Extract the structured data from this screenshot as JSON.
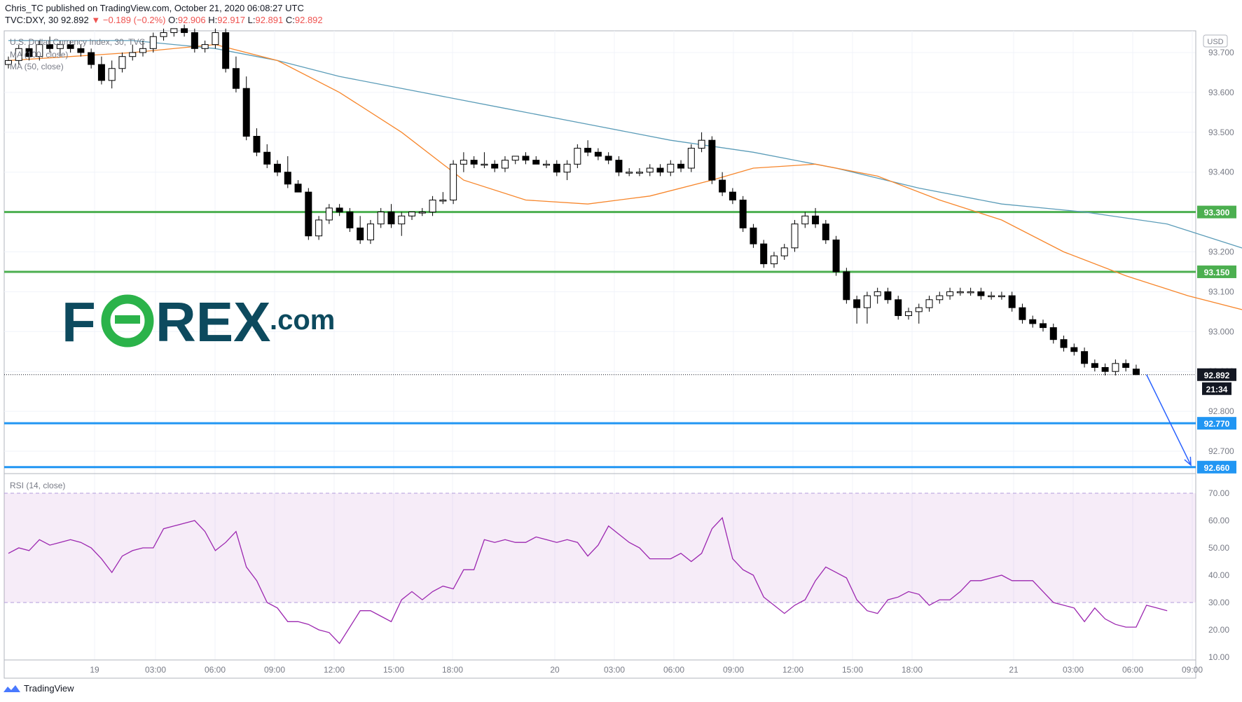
{
  "header": {
    "published_line": "Chris_TC published on TradingView.com, October 21, 2020 06:08:27 UTC",
    "symbol": "TVC:DXY, 30",
    "last": "92.892",
    "change": "−0.189 (−0.2%)",
    "o_label": "O:",
    "o_value": "92.906",
    "h_label": "H:",
    "h_value": "92.917",
    "l_label": "L:",
    "l_value": "92.891",
    "c_label": "C:",
    "c_value": "92.892"
  },
  "legend": {
    "series_title": "U.S. Dollar Currency Index, 30, TVC",
    "ma100": "MA (100, close)",
    "ma50": "MA (50, close)"
  },
  "watermark": {
    "text_left": "F",
    "text_right": "REX",
    "suffix": ".com",
    "brand_color": "#0d4a5e",
    "accent": "#2bb34a"
  },
  "footer": {
    "brand": "TradingView"
  },
  "chart_data": {
    "type": "candlestick",
    "currency_badge": "USD",
    "y_range": [
      92.62,
      93.75
    ],
    "price_ticks": [
      "93.700",
      "93.600",
      "93.500",
      "93.400",
      "93.300",
      "93.200",
      "93.100",
      "93.000",
      "92.900",
      "92.800",
      "92.700"
    ],
    "x_ticks": [
      "19",
      "03:00",
      "06:00",
      "09:00",
      "12:00",
      "15:00",
      "18:00",
      "20",
      "03:00",
      "06:00",
      "09:00",
      "12:00",
      "15:00",
      "18:00",
      "21",
      "03:00",
      "06:00",
      "09:00"
    ],
    "last_price": {
      "value": 92.892,
      "label": "92.892",
      "countdown": "21:34"
    },
    "levels": [
      {
        "value": 93.3,
        "label": "93.300",
        "color": "#4caf50"
      },
      {
        "value": 93.15,
        "label": "93.150",
        "color": "#4caf50"
      },
      {
        "value": 92.77,
        "label": "92.770",
        "color": "#2196f3"
      },
      {
        "value": 92.66,
        "label": "92.660",
        "color": "#2196f3"
      }
    ],
    "projection_arrow": {
      "from": [
        "Oct 21 06:00",
        92.892
      ],
      "to": [
        "Oct 21 09:00",
        92.665
      ],
      "color": "#2962ff"
    },
    "candles": [
      [
        93.67,
        93.69,
        93.66,
        93.68
      ],
      [
        93.68,
        93.72,
        93.67,
        93.71
      ],
      [
        93.71,
        93.72,
        93.68,
        93.69
      ],
      [
        93.69,
        93.73,
        93.68,
        93.72
      ],
      [
        93.72,
        93.74,
        93.7,
        93.71
      ],
      [
        93.71,
        93.73,
        93.69,
        93.72
      ],
      [
        93.72,
        93.73,
        93.7,
        93.71
      ],
      [
        93.71,
        93.72,
        93.69,
        93.7
      ],
      [
        93.7,
        93.71,
        93.66,
        93.67
      ],
      [
        93.67,
        93.69,
        93.62,
        93.63
      ],
      [
        93.63,
        93.68,
        93.61,
        93.66
      ],
      [
        93.66,
        93.7,
        93.65,
        93.69
      ],
      [
        93.69,
        93.72,
        93.68,
        93.7
      ],
      [
        93.7,
        93.73,
        93.69,
        93.71
      ],
      [
        93.71,
        93.75,
        93.7,
        93.74
      ],
      [
        93.74,
        93.76,
        93.73,
        93.75
      ],
      [
        93.75,
        93.76,
        93.74,
        93.76
      ],
      [
        93.76,
        93.77,
        93.74,
        93.75
      ],
      [
        93.75,
        93.76,
        93.7,
        93.71
      ],
      [
        93.71,
        93.73,
        93.7,
        93.72
      ],
      [
        93.72,
        93.76,
        93.71,
        93.75
      ],
      [
        93.75,
        93.76,
        93.65,
        93.66
      ],
      [
        93.66,
        93.69,
        93.6,
        93.61
      ],
      [
        93.61,
        93.64,
        93.48,
        93.49
      ],
      [
        93.49,
        93.51,
        93.44,
        93.45
      ],
      [
        93.45,
        93.47,
        93.41,
        93.42
      ],
      [
        93.42,
        93.43,
        93.39,
        93.4
      ],
      [
        93.4,
        93.44,
        93.36,
        93.37
      ],
      [
        93.37,
        93.38,
        93.35,
        93.35
      ],
      [
        93.35,
        93.36,
        93.23,
        93.24
      ],
      [
        93.24,
        93.29,
        93.23,
        93.28
      ],
      [
        93.28,
        93.32,
        93.27,
        93.31
      ],
      [
        93.31,
        93.32,
        93.29,
        93.3
      ],
      [
        93.3,
        93.31,
        93.25,
        93.26
      ],
      [
        93.26,
        93.29,
        93.22,
        93.23
      ],
      [
        93.23,
        93.28,
        93.22,
        93.27
      ],
      [
        93.27,
        93.31,
        93.26,
        93.3
      ],
      [
        93.3,
        93.32,
        93.26,
        93.27
      ],
      [
        93.27,
        93.3,
        93.24,
        93.29
      ],
      [
        93.29,
        93.3,
        93.28,
        93.3
      ],
      [
        93.3,
        93.31,
        93.29,
        93.3
      ],
      [
        93.3,
        93.34,
        93.29,
        93.33
      ],
      [
        93.33,
        93.35,
        93.32,
        93.33
      ],
      [
        93.33,
        93.43,
        93.32,
        93.42
      ],
      [
        93.42,
        93.45,
        93.4,
        93.43
      ],
      [
        93.43,
        93.44,
        93.41,
        93.42
      ],
      [
        93.42,
        93.45,
        93.41,
        93.42
      ],
      [
        93.42,
        93.43,
        93.4,
        93.41
      ],
      [
        93.41,
        93.44,
        93.4,
        93.43
      ],
      [
        93.43,
        93.44,
        93.42,
        93.44
      ],
      [
        93.44,
        93.45,
        93.42,
        93.43
      ],
      [
        93.43,
        93.44,
        93.42,
        93.42
      ],
      [
        93.42,
        93.43,
        93.41,
        93.42
      ],
      [
        93.42,
        93.43,
        93.39,
        93.4
      ],
      [
        93.4,
        93.43,
        93.38,
        93.42
      ],
      [
        93.42,
        93.47,
        93.41,
        93.46
      ],
      [
        93.46,
        93.48,
        93.44,
        93.45
      ],
      [
        93.45,
        93.46,
        93.43,
        93.44
      ],
      [
        93.44,
        93.45,
        93.42,
        93.43
      ],
      [
        93.43,
        93.44,
        93.39,
        93.4
      ],
      [
        93.4,
        93.41,
        93.39,
        93.4
      ],
      [
        93.4,
        93.41,
        93.39,
        93.4
      ],
      [
        93.4,
        93.42,
        93.39,
        93.41
      ],
      [
        93.41,
        93.42,
        93.39,
        93.4
      ],
      [
        93.4,
        93.43,
        93.39,
        93.42
      ],
      [
        93.42,
        93.43,
        93.4,
        93.41
      ],
      [
        93.41,
        93.47,
        93.4,
        93.46
      ],
      [
        93.46,
        93.5,
        93.45,
        93.48
      ],
      [
        93.48,
        93.49,
        93.37,
        93.38
      ],
      [
        93.38,
        93.4,
        93.34,
        93.35
      ],
      [
        93.35,
        93.36,
        93.32,
        93.33
      ],
      [
        93.33,
        93.34,
        93.25,
        93.26
      ],
      [
        93.26,
        93.27,
        93.21,
        93.22
      ],
      [
        93.22,
        93.23,
        93.16,
        93.17
      ],
      [
        93.17,
        93.2,
        93.16,
        93.19
      ],
      [
        93.19,
        93.22,
        93.18,
        93.21
      ],
      [
        93.21,
        93.28,
        93.2,
        93.27
      ],
      [
        93.27,
        93.3,
        93.26,
        93.29
      ],
      [
        93.29,
        93.31,
        93.26,
        93.27
      ],
      [
        93.27,
        93.28,
        93.22,
        93.23
      ],
      [
        93.23,
        93.24,
        93.14,
        93.15
      ],
      [
        93.15,
        93.16,
        93.07,
        93.08
      ],
      [
        93.08,
        93.09,
        93.02,
        93.06
      ],
      [
        93.06,
        93.1,
        93.02,
        93.09
      ],
      [
        93.09,
        93.11,
        93.07,
        93.1
      ],
      [
        93.1,
        93.11,
        93.07,
        93.08
      ],
      [
        93.08,
        93.09,
        93.03,
        93.04
      ],
      [
        93.04,
        93.06,
        93.03,
        93.05
      ],
      [
        93.05,
        93.07,
        93.02,
        93.06
      ],
      [
        93.06,
        93.09,
        93.05,
        93.08
      ],
      [
        93.08,
        93.1,
        93.07,
        93.09
      ],
      [
        93.09,
        93.11,
        93.08,
        93.1
      ],
      [
        93.1,
        93.11,
        93.09,
        93.1
      ],
      [
        93.1,
        93.11,
        93.09,
        93.1
      ],
      [
        93.1,
        93.11,
        93.08,
        93.09
      ],
      [
        93.09,
        93.1,
        93.08,
        93.09
      ],
      [
        93.09,
        93.1,
        93.08,
        93.09
      ],
      [
        93.09,
        93.1,
        93.05,
        93.06
      ],
      [
        93.06,
        93.07,
        93.02,
        93.03
      ],
      [
        93.03,
        93.04,
        93.01,
        93.02
      ],
      [
        93.02,
        93.03,
        93.0,
        93.01
      ],
      [
        93.01,
        93.02,
        92.97,
        92.98
      ],
      [
        92.98,
        92.99,
        92.95,
        92.96
      ],
      [
        92.96,
        92.97,
        92.94,
        92.95
      ],
      [
        92.95,
        92.96,
        92.91,
        92.92
      ],
      [
        92.92,
        92.93,
        92.9,
        92.91
      ],
      [
        92.91,
        92.92,
        92.89,
        92.9
      ],
      [
        92.9,
        92.93,
        92.89,
        92.92
      ],
      [
        92.92,
        92.93,
        92.9,
        92.91
      ],
      [
        92.906,
        92.917,
        92.891,
        92.892
      ]
    ],
    "ma50": [
      [
        0,
        93.68
      ],
      [
        12,
        93.7
      ],
      [
        20,
        93.72
      ],
      [
        26,
        93.68
      ],
      [
        32,
        93.6
      ],
      [
        38,
        93.5
      ],
      [
        44,
        93.38
      ],
      [
        50,
        93.33
      ],
      [
        56,
        93.32
      ],
      [
        62,
        93.34
      ],
      [
        68,
        93.38
      ],
      [
        72,
        93.41
      ],
      [
        78,
        93.42
      ],
      [
        84,
        93.39
      ],
      [
        90,
        93.33
      ],
      [
        96,
        93.28
      ],
      [
        102,
        93.2
      ],
      [
        108,
        93.14
      ],
      [
        114,
        93.09
      ],
      [
        120,
        93.05
      ],
      [
        126,
        93.02
      ],
      [
        130,
        92.99
      ]
    ],
    "ma100": [
      [
        0,
        93.73
      ],
      [
        12,
        93.73
      ],
      [
        20,
        93.71
      ],
      [
        26,
        93.68
      ],
      [
        32,
        93.64
      ],
      [
        40,
        93.6
      ],
      [
        48,
        93.56
      ],
      [
        56,
        93.52
      ],
      [
        64,
        93.48
      ],
      [
        72,
        93.45
      ],
      [
        80,
        93.41
      ],
      [
        88,
        93.36
      ],
      [
        96,
        93.32
      ],
      [
        104,
        93.3
      ],
      [
        112,
        93.27
      ],
      [
        118,
        93.22
      ],
      [
        124,
        93.17
      ],
      [
        130,
        93.13
      ]
    ],
    "rsi": {
      "label": "RSI (14, close)",
      "ticks": [
        "70.00",
        "60.00",
        "50.00",
        "40.00",
        "30.00",
        "20.00",
        "10.00"
      ],
      "band": [
        30,
        70
      ],
      "values": [
        48,
        50,
        49,
        53,
        51,
        52,
        53,
        52,
        50,
        46,
        41,
        47,
        49,
        50,
        50,
        57,
        58,
        59,
        60,
        56,
        49,
        52,
        56,
        43,
        38,
        30,
        28,
        23,
        23,
        22,
        20,
        19,
        15,
        21,
        27,
        27,
        25,
        23,
        31,
        34,
        31,
        34,
        36,
        35,
        42,
        42,
        53,
        52,
        53,
        52,
        52,
        54,
        53,
        52,
        53,
        52,
        47,
        51,
        58,
        55,
        52,
        50,
        46,
        46,
        46,
        48,
        45,
        48,
        57,
        61,
        46,
        42,
        40,
        32,
        29,
        26,
        29,
        31,
        38,
        43,
        41,
        39,
        31,
        27,
        26,
        31,
        32,
        34,
        33,
        29,
        31,
        31,
        34,
        38,
        38,
        39,
        40,
        38,
        38,
        38,
        34,
        30,
        29,
        28,
        23,
        28,
        24,
        22,
        21,
        21,
        29,
        28,
        27
      ]
    }
  }
}
